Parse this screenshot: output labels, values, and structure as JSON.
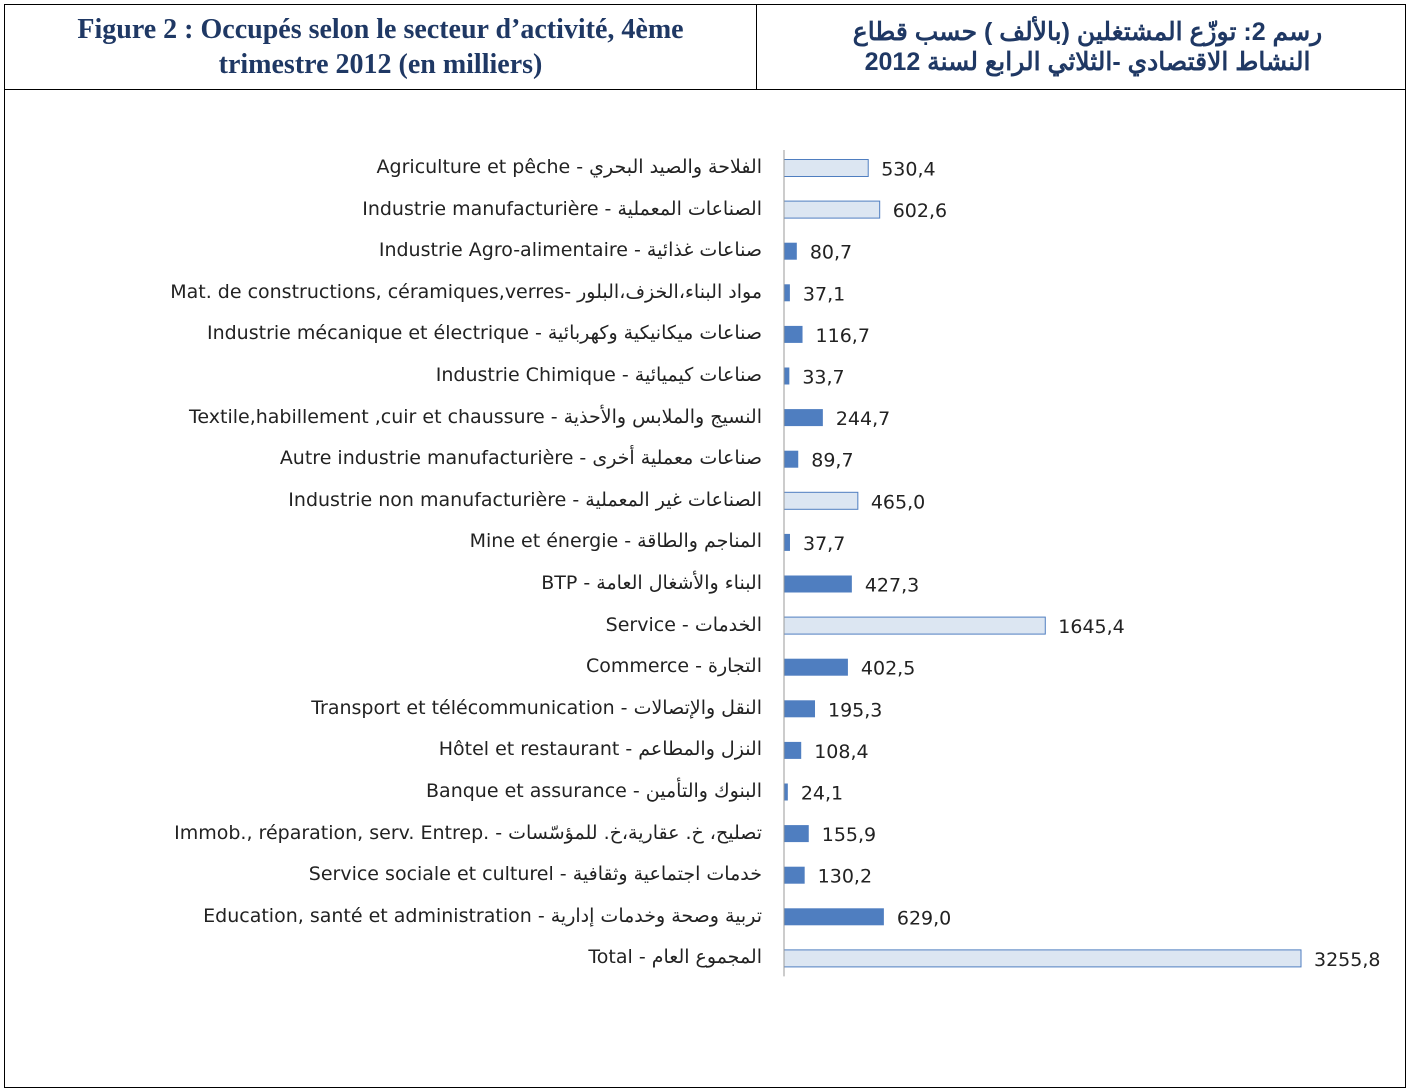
{
  "chart_data": {
    "type": "bar",
    "orientation": "horizontal",
    "title": "Figure 2 : Occupés selon le secteur d’activité, 4ème trimestre 2012 (en milliers)",
    "subtitle": "رسم 2: توزّع المشتغلين (بالألف ) حسب قطاع النشاط الاقتصادي -الثلاثي الرابع لسنة 2012",
    "categories": [
      "Agriculture et pêche - الفلاحة والصيد البحري",
      "Industrie manufacturière - الصناعات المعملية",
      "Industrie Agro-alimentaire - صناعات غذائية",
      "Mat. de constructions, céramiques,verres- مواد البناء،الخزف،البلور",
      "Industrie mécanique et électrique - صناعات ميكانيكية وكهربائية",
      "Industrie Chimique - صناعات كيميائية",
      "Textile,habillement ,cuir et chaussure - النسيج والملابس والأحذية",
      "Autre industrie manufacturière - صناعات معملية أخرى",
      "Industrie non manufacturière - الصناعات  غير المعملية",
      "Mine et énergie - المناجم والطاقة",
      "BTP - البناء والأشغال العامة",
      "Service - الخدمات",
      "Commerce - التجارة",
      "Transport et télécommunication - النقل والإتصالات",
      "Hôtel et restaurant - النزل والمطاعم",
      "Banque et assurance - البنوك والتأمين",
      "Immob., réparation, serv. Entrep. - تصليح، خ. عقارية،خ. للمؤسّسات",
      "Service sociale et culturel - خدمات اجتماعية وثقافية",
      "Education, santé et administration - تربية وصحة وخدمات إدارية",
      "Total - المجموع العام"
    ],
    "values": [
      530.4,
      602.6,
      80.7,
      37.1,
      116.7,
      33.7,
      244.7,
      89.7,
      465.0,
      37.7,
      427.3,
      1645.4,
      402.5,
      195.3,
      108.4,
      24.1,
      155.9,
      130.2,
      629.0,
      3255.8
    ],
    "value_labels": [
      "530,4",
      "602,6",
      "80,7",
      "37,1",
      "116,7",
      "33,7",
      "244,7",
      "89,7",
      "465,0",
      "37,7",
      "427,3",
      "1645,4",
      "402,5",
      "195,3",
      "108,4",
      "24,1",
      "155,9",
      "130,2",
      "629,0",
      "3255,8"
    ],
    "colors": [
      "#dce6f2",
      "#dce6f2",
      "#4f7ec0",
      "#4f7ec0",
      "#4f7ec0",
      "#4f7ec0",
      "#4f7ec0",
      "#4f7ec0",
      "#dce6f2",
      "#4f7ec0",
      "#4f7ec0",
      "#dce6f2",
      "#4f7ec0",
      "#4f7ec0",
      "#4f7ec0",
      "#4f7ec0",
      "#4f7ec0",
      "#4f7ec0",
      "#4f7ec0",
      "#dce6f2"
    ]
  }
}
